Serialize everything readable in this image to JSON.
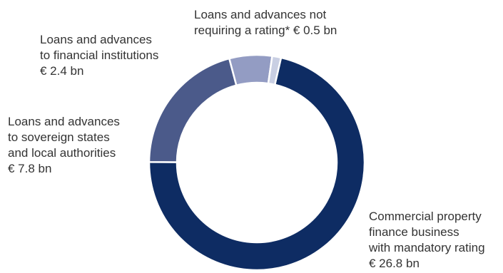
{
  "chart_data": {
    "type": "pie",
    "variant": "donut",
    "unit": "€ bn",
    "colors": [
      "#0e2c63",
      "#4b5a8a",
      "#939cc3",
      "#c9cfe3"
    ],
    "slices": [
      {
        "lines": [
          "Commercial property",
          "finance business",
          "with mandatory rating",
          "€ 26.8 bn"
        ],
        "value": 26.8
      },
      {
        "lines": [
          "Loans and advances",
          "to sovereign states",
          "and local authorities",
          "€ 7.8 bn"
        ],
        "value": 7.8
      },
      {
        "lines": [
          "Loans and advances",
          "to financial institutions",
          "€ 2.4 bn"
        ],
        "value": 2.4
      },
      {
        "lines": [
          "Loans and advances not",
          "requiring a rating* € 0.5 bn"
        ],
        "value": 0.5
      }
    ]
  }
}
